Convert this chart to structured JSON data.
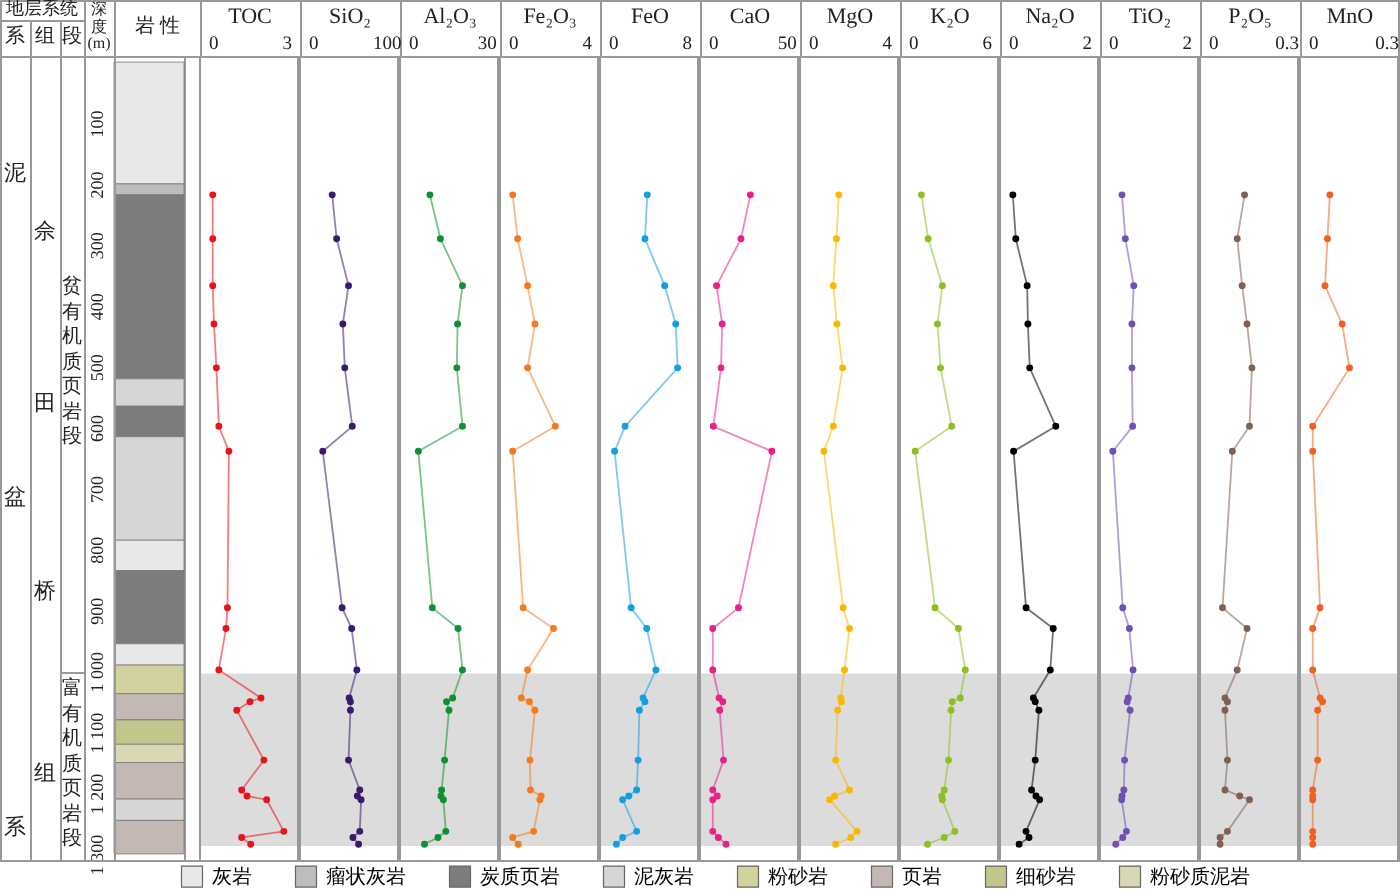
{
  "chart_data": [
    {
      "type": "bar",
      "stacked": true,
      "categories": [
        null
      ],
      "annotations": [
        "地层系统",
        "系",
        "组",
        "段",
        "深度(m)",
        "岩 性",
        "泥",
        "盆",
        "系",
        "佘",
        "田",
        "桥",
        "组",
        "贫有机质页岩段",
        "富有机质页岩段"
      ],
      "ylim": [
        1310,
        -10
      ],
      "yticks": [
        100,
        200,
        300,
        400,
        500,
        600,
        700,
        800,
        900,
        {
          "value": 1000,
          "label": "1 000"
        },
        {
          "value": 1100,
          "label": "1 100"
        },
        {
          "value": 1200,
          "label": "1 200"
        },
        {
          "value": 1300,
          "label": "1 300"
        }
      ],
      "tick_labels": "y",
      "legend": "bottom",
      "series": [
        {
          "name": "灰岩",
          "color": "#e8e8e8",
          "values": [
            200
          ]
        },
        {
          "name": "瘤状灰岩",
          "color": "#bdbdbd",
          "values": [
            18
          ]
        },
        {
          "name": "炭质页岩",
          "color": "#7d7b7b",
          "values": [
            302
          ]
        },
        {
          "name": "泥灰岩",
          "color": "#d6d6d6",
          "values": [
            45
          ]
        },
        {
          "color": "#7d7b7b",
          "values": [
            50
          ]
        },
        {
          "color": "#d6d6d6",
          "values": [
            170
          ]
        },
        {
          "color": "#e8e8e8",
          "values": [
            50
          ]
        },
        {
          "color": "#7d7b7b",
          "values": [
            120
          ]
        },
        {
          "color": "#e8e8e8",
          "values": [
            35
          ]
        },
        {
          "name": "粉砂岩",
          "color": "#d2d29e",
          "values": [
            47
          ]
        },
        {
          "name": "页岩",
          "color": "#c4b8b4",
          "values": [
            43
          ]
        },
        {
          "name": "细砂岩",
          "color": "#c2c68c",
          "values": [
            40
          ]
        },
        {
          "name": "粉砂质泥岩",
          "color": "#d8d8b4",
          "values": [
            30
          ]
        },
        {
          "color": "#c4b8b4",
          "values": [
            60
          ]
        },
        {
          "color": "#d6d6d6",
          "values": [
            35
          ]
        },
        {
          "color": "#c4b8b4",
          "values": [
            55
          ]
        }
      ]
    },
    {
      "type": "line",
      "xlabel": "TOC",
      "xlim": [
        -0.52,
        3.48
      ],
      "xticks": [
        0,
        3
      ],
      "ylim": [
        1310,
        -10
      ],
      "tick_labels": "x",
      "marker": "circle",
      "bands": [
        {
          "axis": "y",
          "from": 1004,
          "to": 1287,
          "color": "#dcdcdc"
        }
      ],
      "series": [
        {
          "color": "#e8141c",
          "x": [
            0,
            0,
            0,
            0.05,
            0.15,
            0.25,
            0.66,
            0.6,
            0.54,
            0.25,
            1.97,
            1.52,
            0.98,
            2.09,
            1.18,
            1.4,
            2.2,
            2.9,
            1.18,
            1.55
          ],
          "values": [
            218,
            290,
            367,
            430,
            502,
            598,
            639,
            896,
            930,
            998,
            1044,
            1050,
            1064,
            1146,
            1195,
            1205,
            1211,
            1263,
            1273,
            1284
          ]
        }
      ]
    },
    {
      "type": "line",
      "xlabel": "SiO₂",
      "xlim": [
        -17.3,
        116
      ],
      "xticks": [
        0,
        100
      ],
      "ylim": [
        1310,
        -10
      ],
      "tick_labels": "x",
      "marker": "circle",
      "bands": [
        {
          "axis": "y",
          "from": 1004,
          "to": 1287,
          "color": "#dcdcdc"
        }
      ],
      "series": [
        {
          "color": "#3a1a6e",
          "x": [
            26.5,
            32.5,
            48.7,
            41,
            43.6,
            53.8,
            13.7,
            40,
            53,
            60,
            49.6,
            51.3,
            51.3,
            48.7,
            64,
            60.7,
            65.8,
            64,
            54.7,
            62.4
          ],
          "values": [
            218,
            290,
            367,
            430,
            502,
            598,
            639,
            896,
            930,
            998,
            1044,
            1050,
            1064,
            1146,
            1195,
            1205,
            1211,
            1263,
            1273,
            1284
          ]
        }
      ]
    },
    {
      "type": "line",
      "xlabel": "Al₂O₃",
      "xlim": [
        -5.2,
        34.8
      ],
      "xticks": [
        0,
        30
      ],
      "ylim": [
        1310,
        -10
      ],
      "tick_labels": "x",
      "marker": "circle",
      "bands": [
        {
          "axis": "y",
          "from": 1004,
          "to": 1287,
          "color": "#dcdcdc"
        }
      ],
      "series": [
        {
          "color": "#109030",
          "x": [
            7,
            11.3,
            20.3,
            18.3,
            18,
            20.3,
            2.3,
            8,
            18.5,
            20.3,
            16.3,
            13.8,
            14.8,
            13,
            11.8,
            11.5,
            12.5,
            13.5,
            10.3,
            4.8
          ],
          "values": [
            218,
            290,
            367,
            430,
            502,
            598,
            639,
            896,
            930,
            998,
            1044,
            1050,
            1064,
            1146,
            1195,
            1205,
            1211,
            1263,
            1273,
            1284
          ]
        }
      ]
    },
    {
      "type": "line",
      "xlabel": "Fe₂O₃",
      "xlim": [
        -0.69,
        4.64
      ],
      "xticks": [
        0,
        4
      ],
      "ylim": [
        1310,
        -10
      ],
      "tick_labels": "x",
      "marker": "circle",
      "bands": [
        {
          "axis": "y",
          "from": 1004,
          "to": 1287,
          "color": "#dcdcdc"
        }
      ],
      "series": [
        {
          "color": "#f47a20",
          "x": [
            0,
            0.27,
            0.81,
            1.21,
            0.81,
            2.32,
            0,
            0.57,
            2.22,
            0.81,
            0.47,
            0.91,
            1.21,
            0.94,
            0.97,
            1.55,
            1.48,
            1.14,
            0,
            0.3
          ],
          "values": [
            218,
            290,
            367,
            430,
            502,
            598,
            639,
            896,
            930,
            998,
            1044,
            1050,
            1064,
            1146,
            1195,
            1205,
            1211,
            1263,
            1273,
            1284
          ]
        }
      ]
    },
    {
      "type": "line",
      "xlabel": "FeO",
      "xlim": [
        -1.39,
        9.28
      ],
      "xticks": [
        0,
        8
      ],
      "ylim": [
        1310,
        -10
      ],
      "tick_labels": "x",
      "marker": "circle",
      "bands": [
        {
          "axis": "y",
          "from": 1004,
          "to": 1287,
          "color": "#dcdcdc"
        }
      ],
      "series": [
        {
          "color": "#10a0e0",
          "x": [
            3.76,
            3.5,
            5.65,
            6.86,
            7.06,
            1.34,
            0.2,
            2,
            3.7,
            4.7,
            3.3,
            3.5,
            2.9,
            2.76,
            2.6,
            1.75,
            1.08,
            2.6,
            1.08,
            0.4
          ],
          "values": [
            218,
            290,
            367,
            430,
            502,
            598,
            639,
            896,
            930,
            998,
            1044,
            1050,
            1064,
            1146,
            1195,
            1205,
            1211,
            1263,
            1273,
            1284
          ]
        }
      ]
    },
    {
      "type": "line",
      "xlabel": "CaO",
      "xlim": [
        -8.7,
        58
      ],
      "xticks": [
        0,
        50
      ],
      "ylim": [
        1310,
        -10
      ],
      "tick_labels": "x",
      "marker": "circle",
      "bands": [
        {
          "axis": "y",
          "from": 1004,
          "to": 1287,
          "color": "#dcdcdc"
        }
      ],
      "series": [
        {
          "color": "#e8208a",
          "x": [
            25.6,
            19.2,
            2.6,
            6.4,
            5.6,
            0.4,
            40.2,
            17.5,
            0,
            0,
            4.3,
            6.8,
            4.7,
            7.3,
            0,
            3,
            0,
            0,
            3.8,
            9
          ],
          "values": [
            218,
            290,
            367,
            430,
            502,
            598,
            639,
            896,
            930,
            998,
            1044,
            1050,
            1064,
            1146,
            1195,
            1205,
            1211,
            1263,
            1273,
            1284
          ]
        }
      ]
    },
    {
      "type": "line",
      "xlabel": "MgO",
      "xlim": [
        -0.69,
        4.64
      ],
      "xticks": [
        0,
        4
      ],
      "ylim": [
        1310,
        -10
      ],
      "tick_labels": "x",
      "marker": "circle",
      "bands": [
        {
          "axis": "y",
          "from": 1004,
          "to": 1287,
          "color": "#dcdcdc"
        }
      ],
      "series": [
        {
          "color": "#f8b800",
          "x": [
            1.42,
            1.29,
            1.12,
            1.32,
            1.63,
            1.12,
            0.61,
            1.66,
            2,
            1.73,
            1.53,
            1.56,
            1.36,
            1.25,
            2,
            1.19,
            0.92,
            2.41,
            2.07,
            1.25
          ],
          "values": [
            218,
            290,
            367,
            430,
            502,
            598,
            639,
            896,
            930,
            998,
            1044,
            1050,
            1064,
            1146,
            1195,
            1205,
            1211,
            1263,
            1273,
            1284
          ]
        }
      ]
    },
    {
      "type": "line",
      "xlabel": "K₂O",
      "xlim": [
        -1.04,
        6.96
      ],
      "xticks": [
        0,
        6
      ],
      "ylim": [
        1310,
        -10
      ],
      "tick_labels": "x",
      "marker": "circle",
      "bands": [
        {
          "axis": "y",
          "from": 1004,
          "to": 1287,
          "color": "#dcdcdc"
        }
      ],
      "series": [
        {
          "color": "#8cc020",
          "x": [
            0.71,
            1.26,
            2.42,
            2.02,
            2.27,
            3.18,
            0.2,
            1.82,
            3.73,
            4.29,
            3.88,
            3.23,
            3.13,
            2.92,
            2.57,
            2.37,
            2.42,
            3.43,
            2.57,
            1.21
          ],
          "values": [
            218,
            290,
            367,
            430,
            502,
            598,
            639,
            896,
            930,
            998,
            1044,
            1050,
            1064,
            1146,
            1195,
            1205,
            1211,
            1263,
            1273,
            1284
          ]
        }
      ]
    },
    {
      "type": "line",
      "xlabel": "Na₂O",
      "xlim": [
        -0.35,
        2.32
      ],
      "xticks": [
        0,
        2
      ],
      "ylim": [
        1310,
        -10
      ],
      "tick_labels": "x",
      "marker": "circle",
      "bands": [
        {
          "axis": "y",
          "from": 1004,
          "to": 1287,
          "color": "#dcdcdc"
        }
      ],
      "series": [
        {
          "color": "#000000",
          "x": [
            0,
            0.08,
            0.39,
            0.41,
            0.46,
            1.17,
            0.02,
            0.36,
            1.1,
            1.02,
            0.56,
            0.61,
            0.71,
            0.61,
            0.51,
            0.63,
            0.73,
            0.36,
            0.44,
            0.17
          ],
          "values": [
            218,
            290,
            367,
            430,
            502,
            598,
            639,
            896,
            930,
            998,
            1044,
            1050,
            1064,
            1146,
            1195,
            1205,
            1211,
            1263,
            1273,
            1284
          ]
        }
      ]
    },
    {
      "type": "line",
      "xlabel": "TiO₂",
      "xlim": [
        -0.35,
        2.32
      ],
      "xticks": [
        0,
        2
      ],
      "ylim": [
        1310,
        -10
      ],
      "tick_labels": "x",
      "marker": "circle",
      "bands": [
        {
          "axis": "y",
          "from": 1004,
          "to": 1287,
          "color": "#dcdcdc"
        }
      ],
      "series": [
        {
          "color": "#7050b0",
          "x": [
            0.25,
            0.34,
            0.57,
            0.52,
            0.52,
            0.54,
            0,
            0.27,
            0.45,
            0.55,
            0.42,
            0.39,
            0.47,
            0.32,
            0.3,
            0.25,
            0.24,
            0.37,
            0.27,
            0.08
          ],
          "values": [
            218,
            290,
            367,
            430,
            502,
            598,
            639,
            896,
            930,
            998,
            1044,
            1050,
            1064,
            1146,
            1195,
            1205,
            1211,
            1263,
            1273,
            1284
          ]
        }
      ]
    },
    {
      "type": "line",
      "xlabel": "P₂O₅",
      "xlim": [
        -0.052,
        0.348
      ],
      "xticks": [
        0,
        0.3
      ],
      "ylim": [
        1310,
        -10
      ],
      "tick_labels": "x",
      "marker": "circle",
      "bands": [
        {
          "axis": "y",
          "from": 1004,
          "to": 1287,
          "color": "#dcdcdc"
        }
      ],
      "series": [
        {
          "color": "#806050",
          "x": [
            0.13,
            0.1,
            0.12,
            0.14,
            0.16,
            0.15,
            0.08,
            0.04,
            0.14,
            0.1,
            0.05,
            0.06,
            0.05,
            0.06,
            0.05,
            0.11,
            0.15,
            0.06,
            0.03,
            0.03
          ],
          "values": [
            218,
            290,
            367,
            430,
            502,
            598,
            639,
            896,
            930,
            998,
            1044,
            1050,
            1064,
            1146,
            1195,
            1205,
            1211,
            1263,
            1273,
            1284
          ]
        }
      ]
    },
    {
      "type": "line",
      "xlabel": "MnO",
      "xlim": [
        -0.052,
        0.348
      ],
      "xticks": [
        0,
        0.3
      ],
      "ylim": [
        1310,
        -10
      ],
      "tick_labels": "x",
      "marker": "circle",
      "bands": [
        {
          "axis": "y",
          "from": 1004,
          "to": 1287,
          "color": "#dcdcdc"
        }
      ],
      "series": [
        {
          "color": "#f06020",
          "x": [
            0.07,
            0.06,
            0.05,
            0.12,
            0.15,
            0,
            0,
            0.03,
            0,
            0,
            0.03,
            0.04,
            0.02,
            0.02,
            0,
            0,
            0,
            0,
            0,
            0
          ],
          "values": [
            218,
            290,
            367,
            430,
            502,
            598,
            639,
            896,
            930,
            998,
            1044,
            1050,
            1064,
            1146,
            1195,
            1205,
            1211,
            1263,
            1273,
            1284
          ]
        }
      ]
    }
  ]
}
